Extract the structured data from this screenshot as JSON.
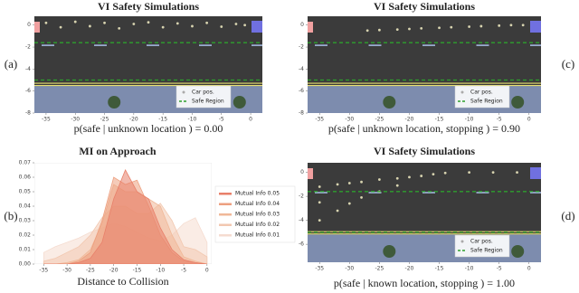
{
  "chart_data": [
    {
      "type": "scatter",
      "panel_label": "(a)",
      "title": "VI Safety Simulations",
      "caption": "p(safe | unknown location ) = 0.00",
      "xlim": [
        -37,
        2
      ],
      "xticks": [
        -35,
        -30,
        -25,
        -20,
        -15,
        -10,
        -5,
        0
      ],
      "ylim": [
        -8,
        0.8
      ],
      "yticks": [
        0,
        -2,
        -4,
        -6,
        -8
      ],
      "legend": "lower right",
      "series": [
        {
          "name": "Car pos.",
          "color": "#d8d4b0",
          "x": [
            -35,
            -32.5,
            -30,
            -27.5,
            -25,
            -22.5,
            -20,
            -17.5,
            -15,
            -12.5,
            -10,
            -7.5,
            -5,
            -2.5,
            -1
          ],
          "y": [
            0.2,
            -0.2,
            0.3,
            -0.1,
            0.2,
            -0.3,
            0.1,
            0.25,
            -0.2,
            0.15,
            -0.1,
            0.2,
            -0.15,
            0.1,
            0
          ]
        },
        {
          "name": "Safe Region",
          "color": "#2ca02c",
          "y_levels": [
            -1.6,
            -5.0
          ]
        }
      ]
    },
    {
      "type": "area",
      "panel_label": "(b)",
      "title": "MI on Approach",
      "xlabel": "Distance to Collision",
      "xlim": [
        -37,
        1
      ],
      "xticks": [
        -35,
        -30,
        -25,
        -20,
        -15,
        -10,
        -5,
        0
      ],
      "ylim": [
        0,
        0.07
      ],
      "yticks": [
        {
          "value": 0,
          "label": "0.00"
        },
        0.01,
        0.02,
        0.03,
        0.04,
        0.05,
        0.06,
        0.07
      ],
      "x": [
        -35,
        -32.5,
        -30,
        -27.5,
        -25,
        -22.5,
        -20,
        -17.5,
        -15,
        -12.5,
        -10,
        -7.5,
        -5,
        -2.5,
        0
      ],
      "legend": "right",
      "series": [
        {
          "name": "Mutual Info 0.05",
          "color": "#e8806a",
          "values": [
            0,
            0,
            0,
            0.001,
            0.004,
            0.015,
            0.045,
            0.065,
            0.05,
            0.045,
            0.025,
            0.01,
            0.003,
            0.001,
            0
          ]
        },
        {
          "name": "Mutual Info 0.04",
          "color": "#eda080",
          "values": [
            0,
            0,
            0,
            0.002,
            0.008,
            0.03,
            0.06,
            0.055,
            0.058,
            0.04,
            0.02,
            0.008,
            0.002,
            0.001,
            0
          ]
        },
        {
          "name": "Mutual Info 0.03",
          "color": "#f0b898",
          "values": [
            0,
            0,
            0.001,
            0.003,
            0.01,
            0.028,
            0.055,
            0.05,
            0.05,
            0.045,
            0.04,
            0.02,
            0.005,
            0.002,
            0
          ]
        },
        {
          "name": "Mutual Info 0.02",
          "color": "#f2c8b0",
          "values": [
            0.002,
            0.004,
            0.008,
            0.012,
            0.02,
            0.032,
            0.04,
            0.04,
            0.035,
            0.035,
            0.042,
            0.03,
            0.012,
            0.01,
            0.005
          ]
        },
        {
          "name": "Mutual Info 0.01",
          "color": "#f5dcd0",
          "values": [
            0.008,
            0.012,
            0.015,
            0.018,
            0.022,
            0.025,
            0.028,
            0.026,
            0.022,
            0.018,
            0.016,
            0.02,
            0.028,
            0.032,
            0.015
          ]
        }
      ]
    },
    {
      "type": "scatter",
      "panel_label": "(c)",
      "title": "VI Safety Simulations",
      "caption": "p(safe | unknown location, stopping ) = 0.90",
      "xlim": [
        -37,
        2
      ],
      "xticks": [
        -35,
        -30,
        -25,
        -20,
        -15,
        -10,
        -5,
        0
      ],
      "ylim": [
        -8,
        0.8
      ],
      "yticks": [
        0,
        -2,
        -4,
        -6,
        -8
      ],
      "legend": "lower right",
      "series": [
        {
          "name": "Car pos.",
          "color": "#d8d4b0",
          "x": [
            -27,
            -25,
            -22,
            -20,
            -18,
            -15,
            -13,
            -10,
            -8,
            -5,
            -3,
            -1
          ],
          "y": [
            -0.5,
            -0.45,
            -0.4,
            -0.35,
            -0.3,
            -0.25,
            -0.2,
            -0.15,
            -0.1,
            -0.05,
            0,
            0
          ]
        },
        {
          "name": "Safe Region",
          "color": "#2ca02c",
          "y_levels": [
            -1.6,
            -5.0
          ]
        }
      ]
    },
    {
      "type": "scatter",
      "panel_label": "(d)",
      "title": "VI Safety Simulations",
      "caption": "p(safe | known location, stopping ) = 1.00",
      "xlim": [
        -37,
        2
      ],
      "xticks": [
        -35,
        -30,
        -25,
        -20,
        -15,
        -10,
        -5,
        0
      ],
      "ylim": [
        -7.5,
        0.8
      ],
      "yticks": [
        0,
        -2,
        -4,
        -6
      ],
      "legend": "lower right",
      "series": [
        {
          "name": "Car pos.",
          "color": "#d8d4b0",
          "x": [
            -35,
            -35,
            -35,
            -32,
            -32,
            -30,
            -30,
            -28,
            -28,
            -25,
            -25,
            -22,
            -22,
            -20,
            -18,
            -16,
            -14,
            -10,
            -6,
            -2
          ],
          "y": [
            -1.2,
            -2.5,
            -4,
            -1,
            -3.2,
            -0.9,
            -2.6,
            -0.8,
            -2.1,
            -0.6,
            -1.6,
            -0.5,
            -1.1,
            -0.4,
            -0.3,
            -0.15,
            -0.05,
            0,
            0,
            0
          ]
        },
        {
          "name": "Safe Region",
          "color": "#2ca02c",
          "y_levels": [
            -1.6,
            -5.0
          ]
        }
      ]
    }
  ]
}
